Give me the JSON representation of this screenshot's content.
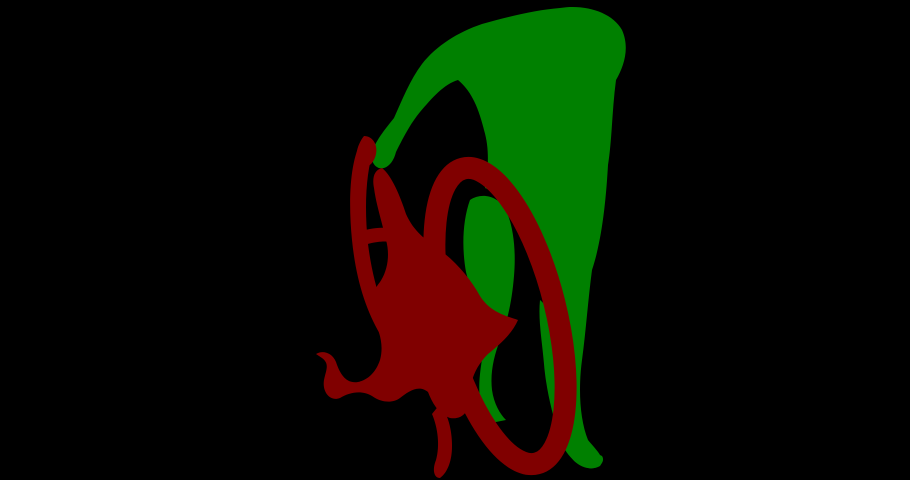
{
  "scene": {
    "background_color": "#000000",
    "segments": [
      {
        "class": "person",
        "color": "#008000"
      },
      {
        "class": "bicycle",
        "color": "#800000"
      }
    ]
  }
}
